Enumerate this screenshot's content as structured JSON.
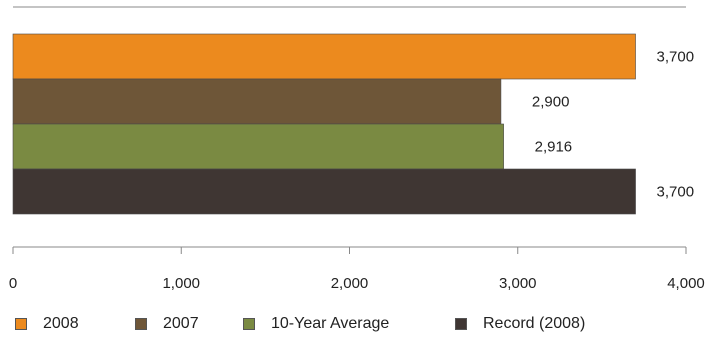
{
  "chart_data": {
    "type": "bar",
    "orientation": "horizontal",
    "categories": [
      "2008",
      "2007",
      "10-Year Average",
      "Record (2008)"
    ],
    "values": [
      3700,
      2900,
      2916,
      3700
    ],
    "value_labels": [
      "3,700",
      "2,900",
      "2,916",
      "3,700"
    ],
    "colors": [
      "#EC8A1E",
      "#6E5638",
      "#7A8A42",
      "#3F3633"
    ],
    "xlim": [
      0,
      4000
    ],
    "xticks": [
      0,
      1000,
      2000,
      3000,
      4000
    ],
    "xtick_labels": [
      "0",
      "1,000",
      "2,000",
      "3,000",
      "4,000"
    ],
    "grid": false,
    "legend_position": "bottom",
    "title": "",
    "xlabel": "",
    "ylabel": ""
  }
}
